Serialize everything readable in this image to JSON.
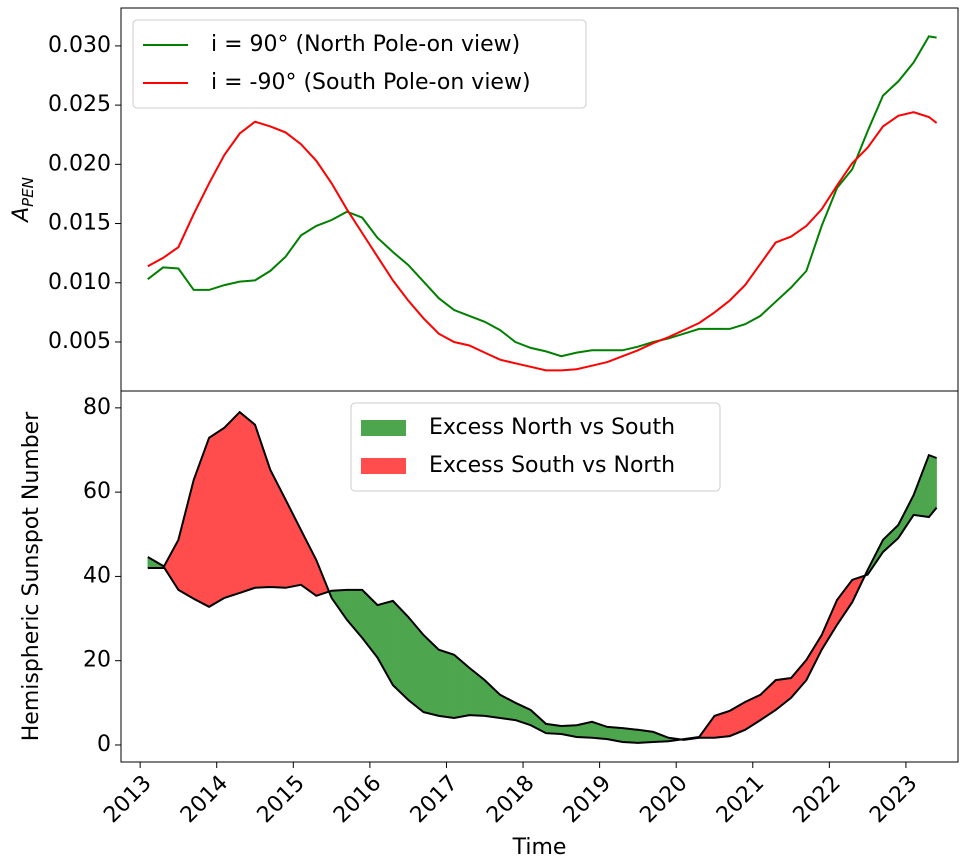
{
  "chart_data": [
    {
      "type": "line",
      "ylabel": "A",
      "ylabel_subscript": "PEN",
      "x": [
        2013.1,
        2013.3,
        2013.5,
        2013.7,
        2013.9,
        2014.1,
        2014.3,
        2014.5,
        2014.7,
        2014.9,
        2015.1,
        2015.3,
        2015.5,
        2015.7,
        2015.9,
        2016.1,
        2016.3,
        2016.5,
        2016.7,
        2016.9,
        2017.1,
        2017.3,
        2017.5,
        2017.7,
        2017.9,
        2018.1,
        2018.3,
        2018.5,
        2018.7,
        2018.9,
        2019.1,
        2019.3,
        2019.5,
        2019.7,
        2019.9,
        2020.1,
        2020.3,
        2020.5,
        2020.7,
        2020.9,
        2021.1,
        2021.3,
        2021.5,
        2021.7,
        2021.9,
        2022.1,
        2022.3,
        2022.5,
        2022.7,
        2022.9,
        2023.1,
        2023.3,
        2023.4
      ],
      "series": [
        {
          "name": "i = 90° (North Pole-on view)",
          "color": "#008000",
          "values": [
            0.0103,
            0.0113,
            0.0112,
            0.0094,
            0.0094,
            0.0098,
            0.0101,
            0.0102,
            0.011,
            0.0122,
            0.014,
            0.0148,
            0.0153,
            0.016,
            0.0155,
            0.0138,
            0.0126,
            0.0115,
            0.0101,
            0.0087,
            0.0077,
            0.0072,
            0.0067,
            0.006,
            0.005,
            0.0045,
            0.0042,
            0.0038,
            0.0041,
            0.0043,
            0.0043,
            0.0043,
            0.0046,
            0.005,
            0.0053,
            0.0057,
            0.0061,
            0.0061,
            0.0061,
            0.0065,
            0.0072,
            0.0084,
            0.0096,
            0.011,
            0.0148,
            0.018,
            0.0196,
            0.0228,
            0.0258,
            0.027,
            0.0286,
            0.0308,
            0.0307
          ]
        },
        {
          "name": "i = -90° (South Pole-on view)",
          "color": "#ff0000",
          "values": [
            0.0114,
            0.0121,
            0.013,
            0.0158,
            0.0184,
            0.0208,
            0.0226,
            0.0236,
            0.0232,
            0.0227,
            0.0217,
            0.0203,
            0.0184,
            0.0162,
            0.0142,
            0.0122,
            0.0102,
            0.0085,
            0.007,
            0.0057,
            0.005,
            0.0047,
            0.0041,
            0.0035,
            0.0032,
            0.0029,
            0.0026,
            0.0026,
            0.0027,
            0.003,
            0.0033,
            0.0038,
            0.0043,
            0.0049,
            0.0054,
            0.006,
            0.0066,
            0.0075,
            0.0085,
            0.0098,
            0.0116,
            0.0134,
            0.0139,
            0.0148,
            0.0162,
            0.0182,
            0.0201,
            0.0214,
            0.0232,
            0.0241,
            0.0244,
            0.024,
            0.0235
          ]
        }
      ],
      "xlim": [
        2012.75,
        2023.68
      ],
      "ylim": [
        0.00086,
        0.0332
      ],
      "yticks": [
        0.005,
        {
          "value": 0.01,
          "label": "0.010"
        },
        0.015,
        {
          "value": 0.02,
          "label": "0.020"
        },
        0.025,
        {
          "value": 0.03,
          "label": "0.030"
        }
      ],
      "legend": "upper left"
    },
    {
      "type": "fill_between",
      "xlabel": "Time",
      "ylabel": "Hemispheric Sunspot Number",
      "x": [
        2013.1,
        2013.3,
        2013.5,
        2013.7,
        2013.9,
        2014.1,
        2014.3,
        2014.5,
        2014.7,
        2014.9,
        2015.1,
        2015.3,
        2015.5,
        2015.7,
        2015.9,
        2016.1,
        2016.3,
        2016.5,
        2016.7,
        2016.9,
        2017.1,
        2017.3,
        2017.5,
        2017.7,
        2017.9,
        2018.1,
        2018.3,
        2018.5,
        2018.7,
        2018.9,
        2019.1,
        2019.3,
        2019.5,
        2019.7,
        2019.9,
        2020.1,
        2020.3,
        2020.5,
        2020.7,
        2020.9,
        2021.1,
        2021.3,
        2021.5,
        2021.7,
        2021.9,
        2022.1,
        2022.3,
        2022.5,
        2022.7,
        2022.9,
        2023.1,
        2023.3,
        2023.4
      ],
      "series": [
        {
          "color": "#000000",
          "values": [
            44.6,
            42.5,
            36.8,
            34.7,
            32.8,
            34.9,
            36.1,
            37.3,
            37.5,
            37.3,
            38.0,
            35.4,
            36.6,
            36.8,
            36.8,
            33.2,
            34.2,
            30.4,
            26.1,
            22.6,
            21.4,
            18.3,
            15.4,
            11.9,
            10.0,
            8.3,
            5.0,
            4.5,
            4.7,
            5.5,
            4.3,
            4.0,
            3.6,
            3.1,
            1.7,
            1.2,
            1.7,
            1.7,
            2.1,
            3.6,
            5.9,
            8.3,
            11.2,
            15.4,
            22.6,
            28.5,
            33.9,
            41.5,
            48.7,
            52.2,
            59.3,
            68.8,
            68.1
          ]
        },
        {
          "color": "#000000",
          "values": [
            42.0,
            42.0,
            48.7,
            62.9,
            72.9,
            75.3,
            79.0,
            76.0,
            65.3,
            58.2,
            51.0,
            43.9,
            34.9,
            29.7,
            25.4,
            20.7,
            14.2,
            10.7,
            7.8,
            6.9,
            6.4,
            7.1,
            6.9,
            6.4,
            5.9,
            4.7,
            2.8,
            2.6,
            1.9,
            1.7,
            1.4,
            0.7,
            0.5,
            0.7,
            0.9,
            1.4,
            1.9,
            6.9,
            8.1,
            10.2,
            11.9,
            15.4,
            15.9,
            20.2,
            26.1,
            34.4,
            39.2,
            40.4,
            45.8,
            49.1,
            54.6,
            54.1,
            56.3
          ]
        }
      ],
      "fills": [
        {
          "name": "Excess North vs South",
          "color": "#4da64d"
        },
        {
          "name": "Excess South vs North",
          "color": "#ff4d4d"
        }
      ],
      "xlim": [
        2012.75,
        2023.68
      ],
      "ylim": [
        -4.04,
        84.0
      ],
      "xticks": [
        2013,
        2014,
        2015,
        2016,
        2017,
        2018,
        2019,
        2020,
        2021,
        2022,
        2023
      ],
      "yticks": [
        0,
        20,
        40,
        60,
        80
      ],
      "legend": "upper center"
    }
  ]
}
